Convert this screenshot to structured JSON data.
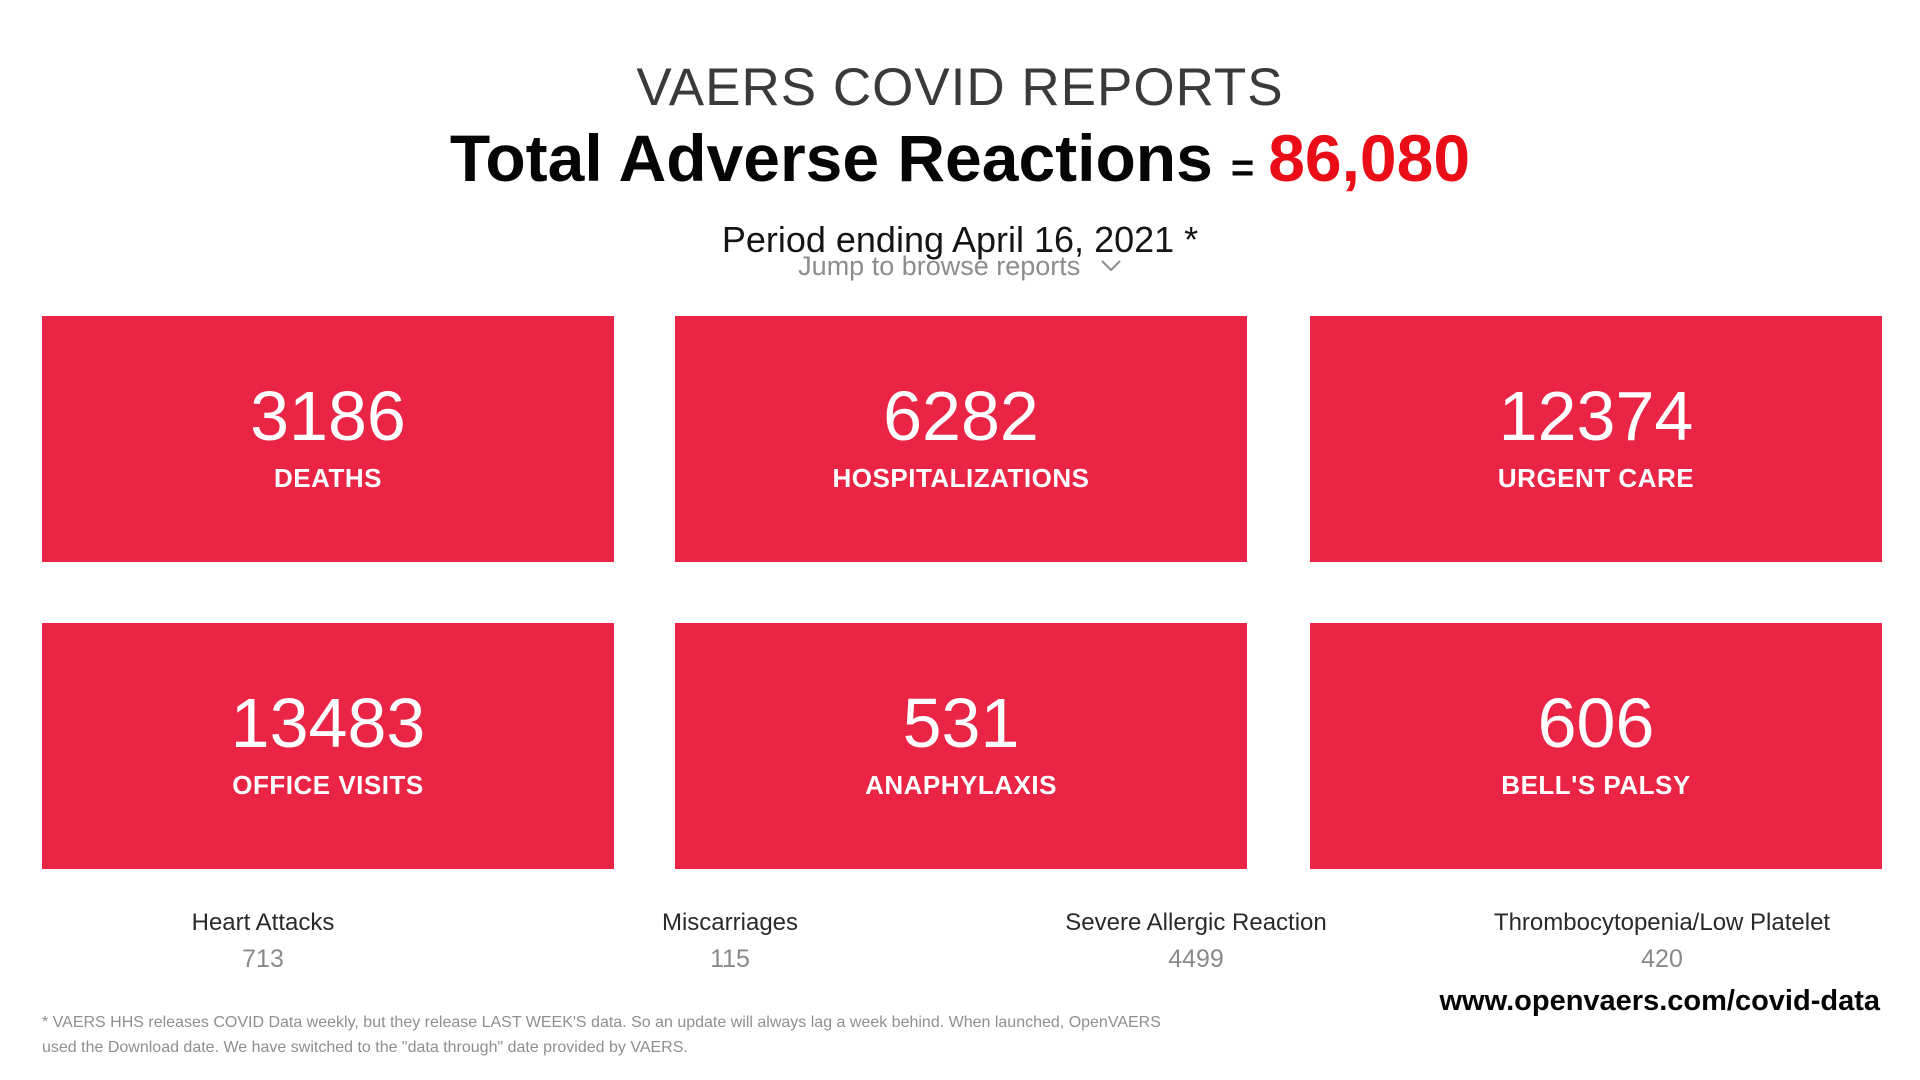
{
  "header": {
    "kicker": "VAERS COVID REPORTS",
    "headline": "Total Adverse Reactions",
    "equals": "=",
    "total": "86,080",
    "period": "Period ending April 16, 2021 *"
  },
  "jump": {
    "label": "Jump to browse reports",
    "icon": "chevron-down-icon"
  },
  "cards": [
    {
      "value": "3186",
      "label": "DEATHS"
    },
    {
      "value": "6282",
      "label": "HOSPITALIZATIONS"
    },
    {
      "value": "12374",
      "label": "URGENT CARE"
    },
    {
      "value": "13483",
      "label": "OFFICE VISITS"
    },
    {
      "value": "531",
      "label": "ANAPHYLAXIS"
    },
    {
      "value": "606",
      "label": "BELL'S PALSY"
    }
  ],
  "stats": [
    {
      "label": "Heart Attacks",
      "value": "713"
    },
    {
      "label": "Miscarriages",
      "value": "115"
    },
    {
      "label": "Severe Allergic Reaction",
      "value": "4499"
    },
    {
      "label": "Thrombocytopenia/Low Platelet",
      "value": "420"
    }
  ],
  "footnote": "* VAERS HHS releases COVID Data weekly, but they release LAST WEEK'S data. So an update will always lag a week behind. When launched, OpenVAERS used the Download date. We have switched to the \"data through\" date provided by VAERS.",
  "url": "www.openvaers.com/covid-data",
  "colors": {
    "card_bg": "#e92444",
    "total_red": "#ea0d17",
    "card_text": "#ffffff"
  }
}
